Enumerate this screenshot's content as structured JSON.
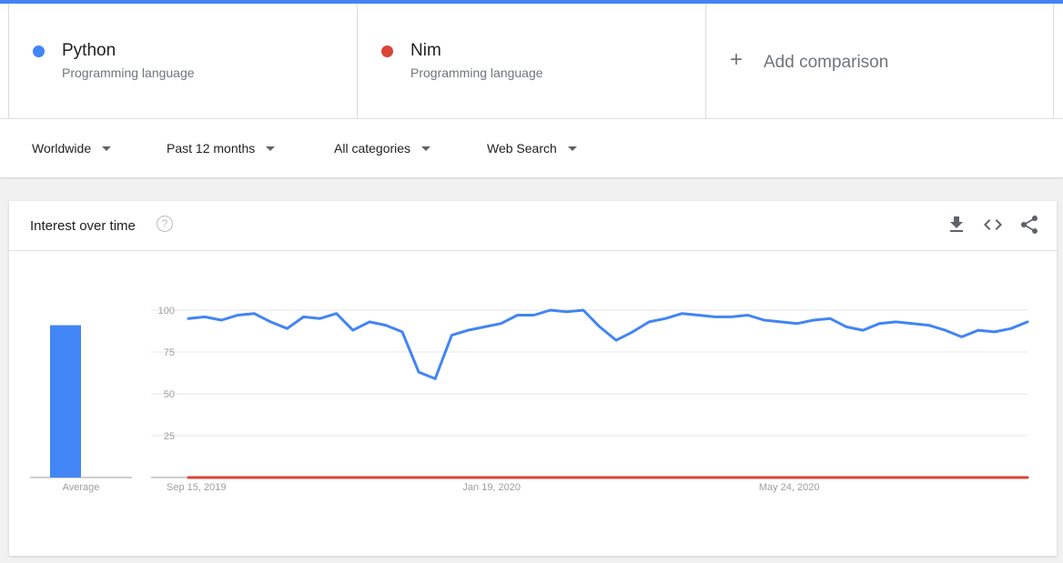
{
  "terms": [
    {
      "name": "Python",
      "subtitle": "Programming language",
      "color": "#4285f4"
    },
    {
      "name": "Nim",
      "subtitle": "Programming language",
      "color": "#db4437"
    }
  ],
  "add_comparison": {
    "icon": "plus-icon",
    "label": "Add comparison"
  },
  "filters": [
    {
      "label": "Worldwide"
    },
    {
      "label": "Past 12 months"
    },
    {
      "label": "All categories"
    },
    {
      "label": "Web Search"
    }
  ],
  "card": {
    "title": "Interest over time",
    "help_icon": "help-circle-icon",
    "help_label": "?",
    "actions": [
      "download-icon",
      "embed-code-icon",
      "share-icon"
    ]
  },
  "chart_data": {
    "type": "line",
    "ylim": [
      0,
      100
    ],
    "yticks": [
      25,
      50,
      75,
      100
    ],
    "xtick_labels": [
      "Sep 15, 2019",
      "Jan 19, 2020",
      "May 24, 2020"
    ],
    "average_label": "Average",
    "averages": [
      {
        "series": "Python",
        "value": 91
      },
      {
        "series": "Nim",
        "value": 0
      }
    ],
    "series": [
      {
        "name": "Python",
        "color": "#4285f4",
        "values": [
          95,
          96,
          94,
          97,
          98,
          93,
          89,
          96,
          95,
          98,
          88,
          93,
          91,
          87,
          63,
          59,
          85,
          88,
          90,
          92,
          97,
          97,
          100,
          99,
          100,
          90,
          82,
          87,
          93,
          95,
          98,
          97,
          96,
          96,
          97,
          94,
          93,
          92,
          94,
          95,
          90,
          88,
          92,
          93,
          92,
          91,
          88,
          84,
          88,
          87,
          89,
          93
        ]
      },
      {
        "name": "Nim",
        "color": "#db4437",
        "values": [
          0,
          0,
          0,
          0,
          0,
          0,
          0,
          0,
          0,
          0,
          0,
          0,
          0,
          0,
          0,
          0,
          0,
          0,
          0,
          0,
          0,
          0,
          0,
          0,
          0,
          0,
          0,
          0,
          0,
          0,
          0,
          0,
          0,
          0,
          0,
          0,
          0,
          0,
          0,
          0,
          0,
          0,
          0,
          0,
          0,
          0,
          0,
          0,
          0,
          0,
          0,
          0
        ]
      }
    ]
  }
}
